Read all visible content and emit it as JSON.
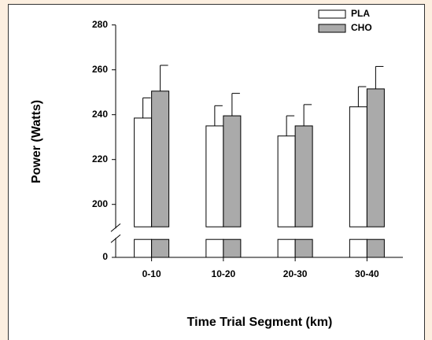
{
  "chart_data": {
    "type": "bar",
    "x_label": "Time Trial Segment (km)",
    "y_label": "Power (Watts)",
    "categories": [
      "0-10",
      "10-20",
      "20-30",
      "30-40"
    ],
    "series": [
      {
        "name": "PLA",
        "color": "#ffffff",
        "values": [
          238.5,
          235,
          230.5,
          243.5
        ],
        "errors": [
          9,
          9,
          9,
          9
        ]
      },
      {
        "name": "CHO",
        "color": "#aaaaaa",
        "values": [
          250.5,
          239.5,
          235,
          251.5
        ],
        "errors": [
          11.5,
          10,
          9.5,
          10
        ]
      }
    ],
    "ylim": [
      0,
      280
    ],
    "axis_break": [
      8,
      190
    ],
    "yticks": [
      0,
      200,
      220,
      240,
      260,
      280
    ],
    "legend": "upper right"
  }
}
